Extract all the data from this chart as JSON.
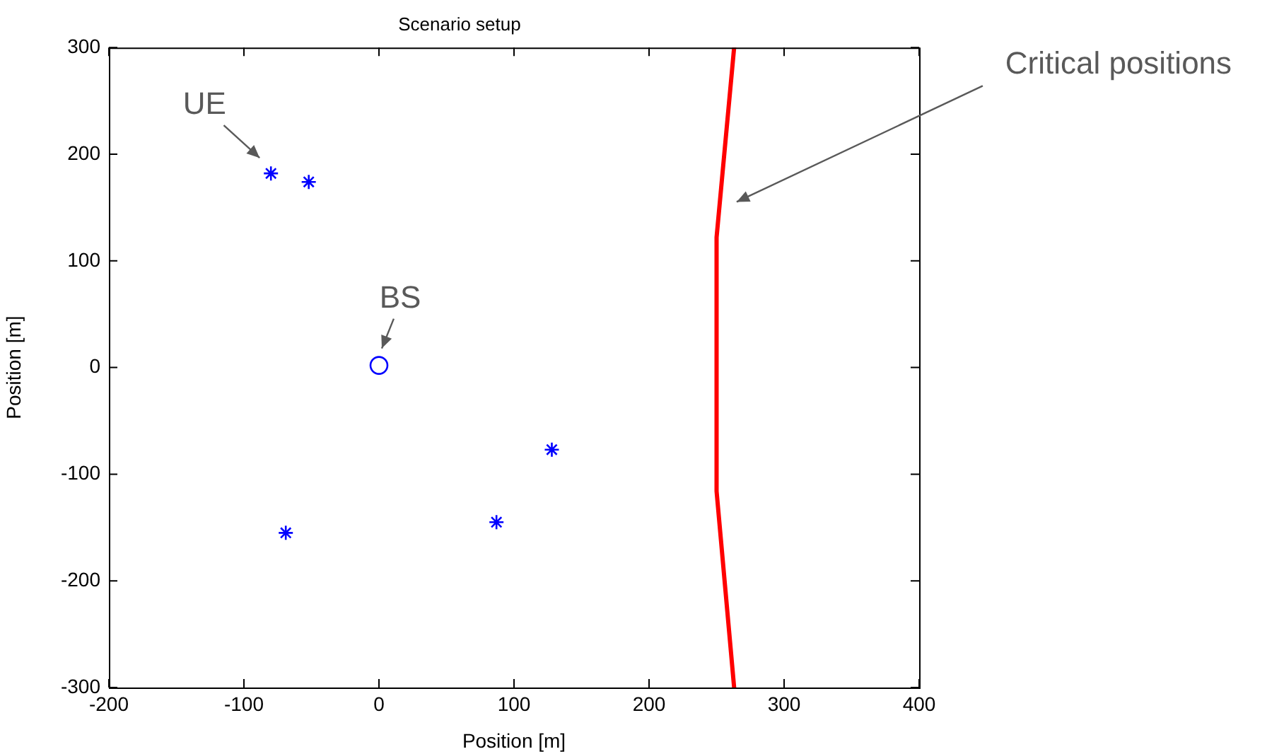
{
  "chart_data": {
    "type": "scatter",
    "title": "Scenario setup",
    "xlabel": "Position [m]",
    "ylabel": "Position [m]",
    "xlim": [
      -200,
      400
    ],
    "xticks": [
      -200,
      -100,
      0,
      100,
      200,
      300,
      400
    ],
    "ylim": [
      -300,
      300
    ],
    "yticks": [
      -300,
      -200,
      -100,
      0,
      100,
      200,
      300
    ],
    "grid": false,
    "legend": false,
    "series": [
      {
        "type": "scatter",
        "color": "#0000ff",
        "marker": "cross",
        "x": [
          -80,
          -52,
          -69,
          87,
          128
        ],
        "values": [
          182,
          174,
          -155,
          -145,
          -77
        ]
      },
      {
        "type": "scatter",
        "color": "#0000ff",
        "marker": "circle",
        "x": [
          0
        ],
        "values": [
          2
        ]
      },
      {
        "type": "line",
        "color": "#ff0000",
        "marker": "none",
        "x": [
          263,
          250,
          250,
          263
        ],
        "values": [
          300,
          122,
          -116,
          -300
        ]
      }
    ],
    "annotations": [
      {
        "text": "UE",
        "x": -80,
        "y": 182
      },
      {
        "text": "BS",
        "x": 0,
        "y": 2
      },
      "Critical positions"
    ]
  }
}
